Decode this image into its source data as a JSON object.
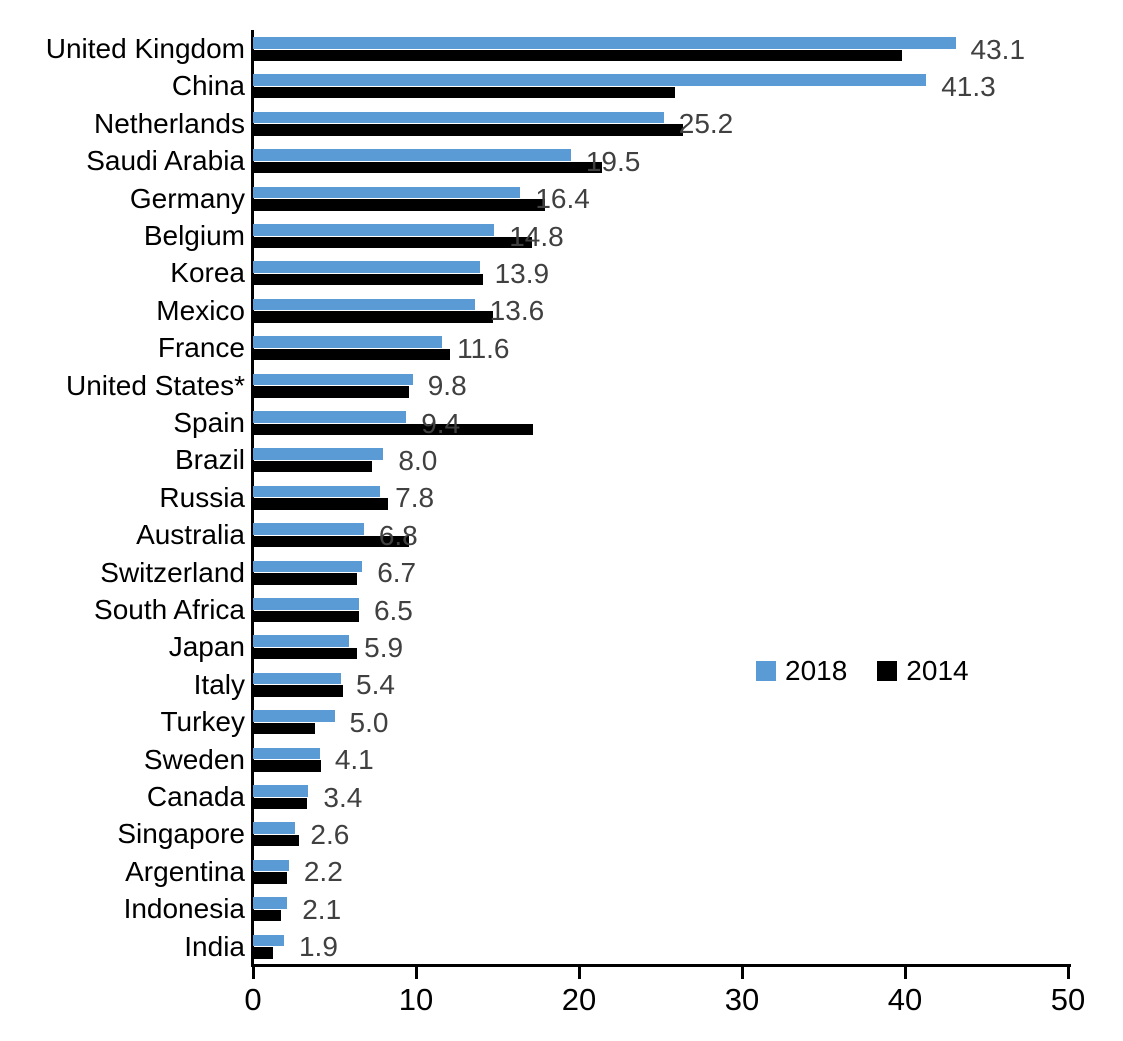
{
  "chart_data": {
    "type": "bar",
    "orientation": "horizontal",
    "title": "",
    "xlabel": "",
    "ylabel": "",
    "categories": [
      "United Kingdom",
      "China",
      "Netherlands",
      "Saudi Arabia",
      "Germany",
      "Belgium",
      "Korea",
      "Mexico",
      "France",
      "United States*",
      "Spain",
      "Brazil",
      "Russia",
      "Australia",
      "Switzerland",
      "South Africa",
      "Japan",
      "Italy",
      "Turkey",
      "Sweden",
      "Canada",
      "Singapore",
      "Argentina",
      "Indonesia",
      "India"
    ],
    "series": [
      {
        "name": "2018",
        "color": "#5B9BD5",
        "values": [
          43.1,
          41.3,
          25.2,
          19.5,
          16.4,
          14.8,
          13.9,
          13.6,
          11.6,
          9.8,
          9.4,
          8.0,
          7.8,
          6.8,
          6.7,
          6.5,
          5.9,
          5.4,
          5.0,
          4.1,
          3.4,
          2.6,
          2.2,
          2.1,
          1.9
        ]
      },
      {
        "name": "2014",
        "color": "#000000",
        "values": [
          39.8,
          25.9,
          26.4,
          21.4,
          17.9,
          17.1,
          14.1,
          14.7,
          12.1,
          9.6,
          17.2,
          7.3,
          8.3,
          9.6,
          6.4,
          6.5,
          6.4,
          5.5,
          3.8,
          4.2,
          3.3,
          2.8,
          2.1,
          1.7,
          1.2
        ]
      }
    ],
    "data_labels": [
      "43.1",
      "41.3",
      "25.2",
      "19.5",
      "16.4",
      "14.8",
      "13.9",
      "13.6",
      "11.6",
      "9.8",
      "9.4",
      "8.0",
      "7.8",
      "6.8",
      "6.7",
      "6.5",
      "5.9",
      "5.4",
      "5.0",
      "4.1",
      "3.4",
      "2.6",
      "2.2",
      "2.1",
      "1.9"
    ],
    "data_label_series": "2018",
    "data_label_color": "#404040",
    "xlim": [
      0,
      50
    ],
    "x_ticks": [
      "0",
      "10",
      "20",
      "30",
      "40",
      "50"
    ],
    "grid": false,
    "axis_color": "#000000",
    "legend": {
      "position": "middle-right",
      "entries": [
        {
          "label": "2018",
          "color": "#5B9BD5"
        },
        {
          "label": "2014",
          "color": "#000000"
        }
      ]
    }
  }
}
